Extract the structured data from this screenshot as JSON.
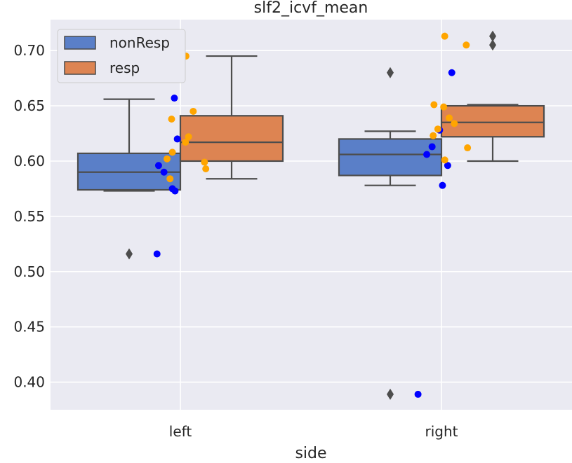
{
  "chart_data": {
    "type": "box",
    "title": "slf2_icvf_mean",
    "xlabel": "side",
    "ylabel": "",
    "categories": [
      "left",
      "right"
    ],
    "ylim": [
      0.375,
      0.728
    ],
    "yticks": [
      "0.40",
      "0.45",
      "0.50",
      "0.55",
      "0.60",
      "0.65",
      "0.70"
    ],
    "grid": true,
    "legend": {
      "position": "top-left"
    },
    "series": [
      {
        "name": "nonResp",
        "color": "#5A7FC8",
        "boxes": [
          {
            "category": "left",
            "whisker_low": 0.573,
            "q1": 0.574,
            "median": 0.59,
            "q3": 0.607,
            "whisker_high": 0.656,
            "outliers": [
              0.516
            ]
          },
          {
            "category": "right",
            "whisker_low": 0.578,
            "q1": 0.587,
            "median": 0.606,
            "q3": 0.62,
            "whisker_high": 0.627,
            "outliers": [
              0.68,
              0.389
            ]
          }
        ],
        "points_color": "#0000FF",
        "points": [
          {
            "category": "left",
            "values": [
              0.657,
              0.62,
              0.596,
              0.59,
              0.575,
              0.573,
              0.516
            ]
          },
          {
            "category": "right",
            "values": [
              0.68,
              0.628,
              0.613,
              0.606,
              0.596,
              0.578,
              0.389
            ]
          }
        ]
      },
      {
        "name": "resp",
        "color": "#DD8452",
        "boxes": [
          {
            "category": "left",
            "whisker_low": 0.584,
            "q1": 0.6,
            "median": 0.617,
            "q3": 0.641,
            "whisker_high": 0.695,
            "outliers": []
          },
          {
            "category": "right",
            "whisker_low": 0.6,
            "q1": 0.622,
            "median": 0.635,
            "q3": 0.65,
            "whisker_high": 0.651,
            "outliers": [
              0.713,
              0.705
            ]
          }
        ],
        "points_color": "#FFA500",
        "points": [
          {
            "category": "left",
            "values": [
              0.695,
              0.681,
              0.645,
              0.638,
              0.622,
              0.617,
              0.608,
              0.602,
              0.599,
              0.593,
              0.584
            ]
          },
          {
            "category": "right",
            "values": [
              0.713,
              0.705,
              0.651,
              0.649,
              0.639,
              0.634,
              0.629,
              0.623,
              0.612,
              0.601
            ]
          }
        ]
      }
    ]
  }
}
